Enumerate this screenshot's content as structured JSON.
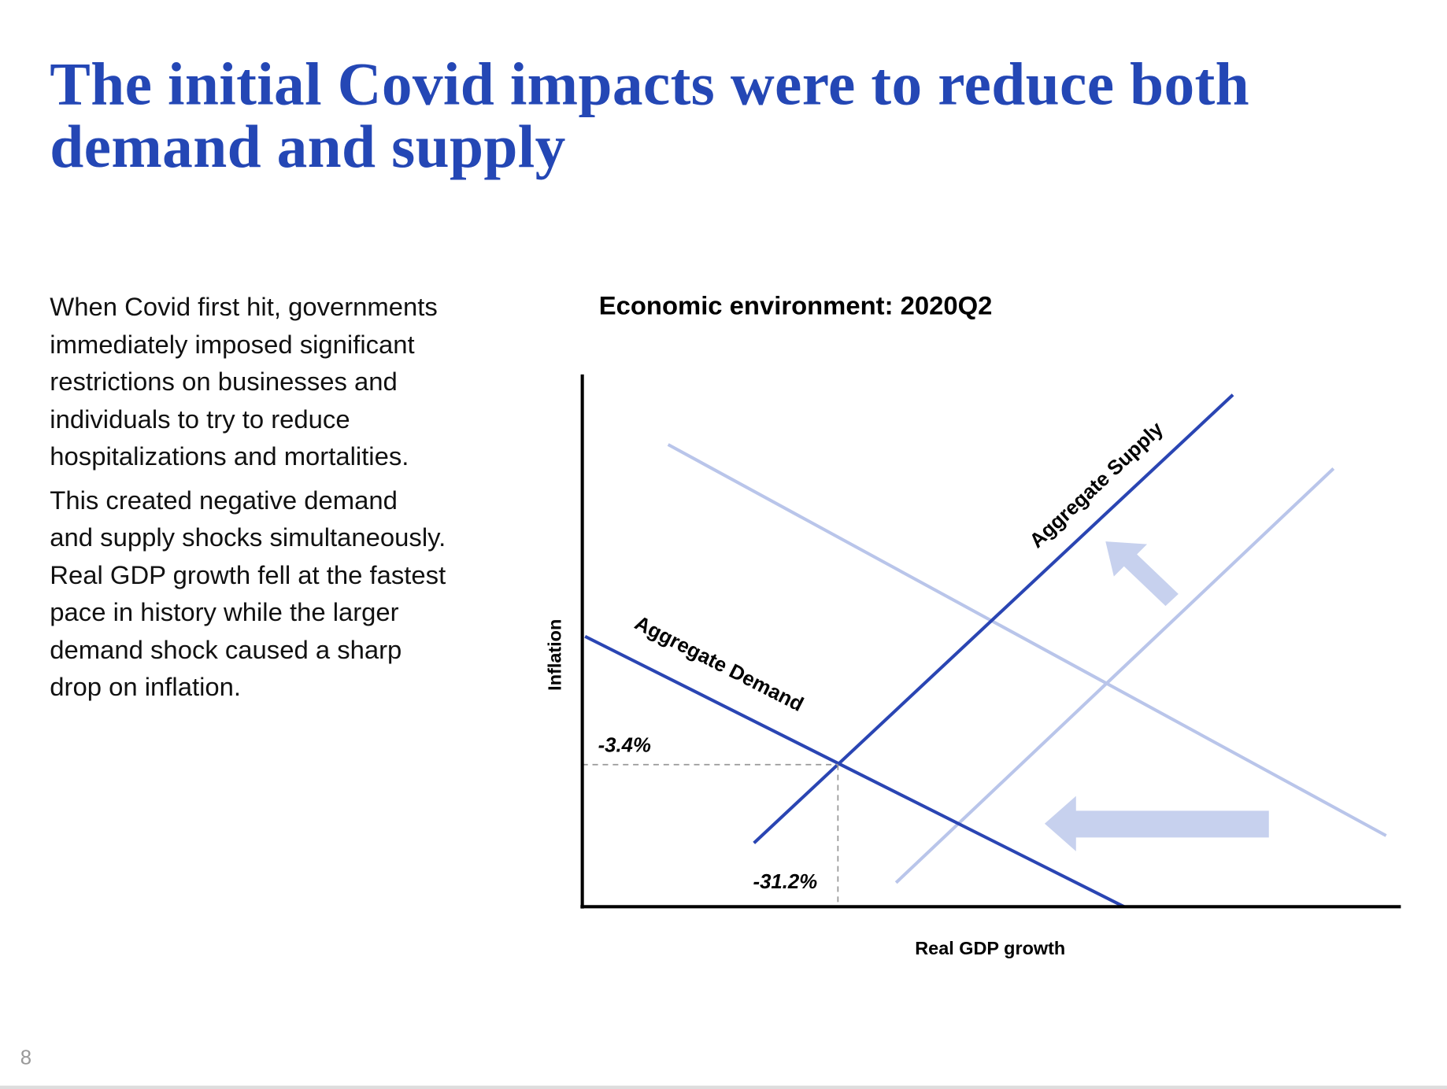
{
  "header": {
    "title_lines": [
      "The initial Covid impacts were to reduce both",
      "demand and supply"
    ]
  },
  "body": {
    "paragraphs": [
      "When Covid first hit, governments immediately imposed significant restrictions on businesses and individuals to try to reduce hospitalizations and mortalities.",
      "This created negative demand and supply shocks simultaneously. Real GDP growth fell at the fastest pace in history while the larger demand shock caused a sharp drop on inflation."
    ]
  },
  "diagram": {
    "title": "Economic environment: 2020Q2",
    "y_axis_label": "Inflation",
    "x_axis_label": "Real GDP growth",
    "supply_label": "Aggregate Supply",
    "demand_label": "Aggregate Demand",
    "inflation_label": "-3.4%",
    "gdp_label": "-31.2%"
  },
  "footer": {
    "page_number": "8"
  }
}
